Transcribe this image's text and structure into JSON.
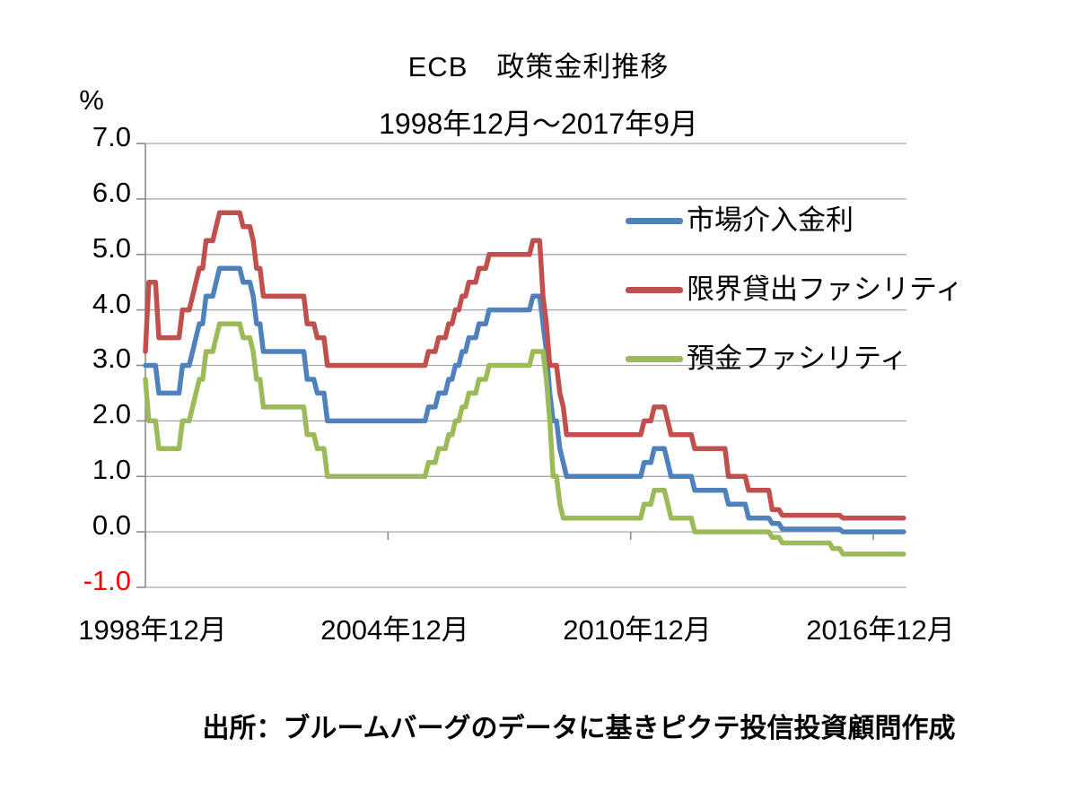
{
  "title": "ECB　政策金利推移",
  "subtitle": "1998年12月～2017年9月",
  "source": "出所：ブルームバーグのデータに基きピクテ投信投資顧問作成",
  "y_axis": {
    "unit": "%",
    "tick_labels": [
      "7.0",
      "6.0",
      "5.0",
      "4.0",
      "3.0",
      "2.0",
      "1.0",
      "0.0",
      "-1.0"
    ],
    "negative_tick_color": "#FF0000"
  },
  "x_axis": {
    "labels": [
      "1998年12月",
      "2004年12月",
      "2010年12月",
      "2016年12月"
    ]
  },
  "legend": [
    {
      "label": "市場介入金利",
      "color": "#4F81BD"
    },
    {
      "label": "限界貸出ファシリティ",
      "color": "#C0504D"
    },
    {
      "label": "預金ファシリティ",
      "color": "#9BBB59"
    }
  ],
  "colors": {
    "gridline": "#A6A6A6",
    "axis": "#8C8C8C"
  },
  "chart_data": {
    "type": "line",
    "title": "ECB　政策金利推移",
    "period_label": "1998年12月～2017年9月",
    "unit": "%",
    "ylim": [
      -1.0,
      7.0
    ],
    "y_gridline_step": 1.0,
    "grid": true,
    "legend_position": "inside-top-right",
    "x_range_months": [
      "1998-12",
      "2017-09"
    ],
    "x_tick_months": [
      "1998-12",
      "2004-12",
      "2010-12",
      "2016-12"
    ],
    "x_tick_labels": [
      "1998年12月",
      "2004年12月",
      "2010年12月",
      "2016年12月"
    ],
    "series": [
      {
        "name": "市場介入金利",
        "color": "#4F81BD",
        "steps_month_value": [
          [
            "1998-12",
            3.0
          ],
          [
            "1999-04",
            2.5
          ],
          [
            "1999-11",
            3.0
          ],
          [
            "2000-02",
            3.25
          ],
          [
            "2000-03",
            3.5
          ],
          [
            "2000-04",
            3.75
          ],
          [
            "2000-06",
            4.25
          ],
          [
            "2000-09",
            4.5
          ],
          [
            "2000-10",
            4.75
          ],
          [
            "2001-05",
            4.5
          ],
          [
            "2001-08",
            4.25
          ],
          [
            "2001-09",
            3.75
          ],
          [
            "2001-11",
            3.25
          ],
          [
            "2002-12",
            2.75
          ],
          [
            "2003-03",
            2.5
          ],
          [
            "2003-06",
            2.0
          ],
          [
            "2005-12",
            2.25
          ],
          [
            "2006-03",
            2.5
          ],
          [
            "2006-06",
            2.75
          ],
          [
            "2006-08",
            3.0
          ],
          [
            "2006-10",
            3.25
          ],
          [
            "2006-12",
            3.5
          ],
          [
            "2007-03",
            3.75
          ],
          [
            "2007-06",
            4.0
          ],
          [
            "2008-07",
            4.25
          ],
          [
            "2008-10",
            3.75
          ],
          [
            "2008-11",
            3.25
          ],
          [
            "2008-12",
            2.5
          ],
          [
            "2009-01",
            2.0
          ],
          [
            "2009-03",
            1.5
          ],
          [
            "2009-04",
            1.25
          ],
          [
            "2009-05",
            1.0
          ],
          [
            "2011-04",
            1.25
          ],
          [
            "2011-07",
            1.5
          ],
          [
            "2011-11",
            1.25
          ],
          [
            "2011-12",
            1.0
          ],
          [
            "2012-07",
            0.75
          ],
          [
            "2013-05",
            0.5
          ],
          [
            "2013-11",
            0.25
          ],
          [
            "2014-06",
            0.15
          ],
          [
            "2014-09",
            0.05
          ],
          [
            "2016-03",
            0.0
          ]
        ]
      },
      {
        "name": "限界貸出ファシリティ",
        "color": "#C0504D",
        "steps_month_value": [
          [
            "1998-12",
            3.25
          ],
          [
            "1999-01",
            4.5
          ],
          [
            "1999-04",
            3.5
          ],
          [
            "1999-11",
            4.0
          ],
          [
            "2000-02",
            4.25
          ],
          [
            "2000-03",
            4.5
          ],
          [
            "2000-04",
            4.75
          ],
          [
            "2000-06",
            5.25
          ],
          [
            "2000-09",
            5.5
          ],
          [
            "2000-10",
            5.75
          ],
          [
            "2001-05",
            5.5
          ],
          [
            "2001-08",
            5.25
          ],
          [
            "2001-09",
            4.75
          ],
          [
            "2001-11",
            4.25
          ],
          [
            "2002-12",
            3.75
          ],
          [
            "2003-03",
            3.5
          ],
          [
            "2003-06",
            3.0
          ],
          [
            "2005-12",
            3.25
          ],
          [
            "2006-03",
            3.5
          ],
          [
            "2006-06",
            3.75
          ],
          [
            "2006-08",
            4.0
          ],
          [
            "2006-10",
            4.25
          ],
          [
            "2006-12",
            4.5
          ],
          [
            "2007-03",
            4.75
          ],
          [
            "2007-06",
            5.0
          ],
          [
            "2008-07",
            5.25
          ],
          [
            "2008-10",
            4.25
          ],
          [
            "2008-11",
            3.75
          ],
          [
            "2008-12",
            3.0
          ],
          [
            "2009-03",
            2.5
          ],
          [
            "2009-04",
            2.25
          ],
          [
            "2009-05",
            1.75
          ],
          [
            "2011-04",
            2.0
          ],
          [
            "2011-07",
            2.25
          ],
          [
            "2011-11",
            2.0
          ],
          [
            "2011-12",
            1.75
          ],
          [
            "2012-07",
            1.5
          ],
          [
            "2013-05",
            1.0
          ],
          [
            "2013-11",
            0.75
          ],
          [
            "2014-06",
            0.4
          ],
          [
            "2014-09",
            0.3
          ],
          [
            "2016-03",
            0.25
          ]
        ]
      },
      {
        "name": "預金ファシリティ",
        "color": "#9BBB59",
        "steps_month_value": [
          [
            "1998-12",
            2.75
          ],
          [
            "1999-01",
            2.0
          ],
          [
            "1999-04",
            1.5
          ],
          [
            "1999-11",
            2.0
          ],
          [
            "2000-02",
            2.25
          ],
          [
            "2000-03",
            2.5
          ],
          [
            "2000-04",
            2.75
          ],
          [
            "2000-06",
            3.25
          ],
          [
            "2000-09",
            3.5
          ],
          [
            "2000-10",
            3.75
          ],
          [
            "2001-05",
            3.5
          ],
          [
            "2001-08",
            3.25
          ],
          [
            "2001-09",
            2.75
          ],
          [
            "2001-11",
            2.25
          ],
          [
            "2002-12",
            1.75
          ],
          [
            "2003-03",
            1.5
          ],
          [
            "2003-06",
            1.0
          ],
          [
            "2005-12",
            1.25
          ],
          [
            "2006-03",
            1.5
          ],
          [
            "2006-06",
            1.75
          ],
          [
            "2006-08",
            2.0
          ],
          [
            "2006-10",
            2.25
          ],
          [
            "2006-12",
            2.5
          ],
          [
            "2007-03",
            2.75
          ],
          [
            "2007-06",
            3.0
          ],
          [
            "2008-07",
            3.25
          ],
          [
            "2008-11",
            2.75
          ],
          [
            "2008-12",
            2.0
          ],
          [
            "2009-01",
            1.0
          ],
          [
            "2009-03",
            0.5
          ],
          [
            "2009-04",
            0.25
          ],
          [
            "2011-04",
            0.5
          ],
          [
            "2011-07",
            0.75
          ],
          [
            "2011-11",
            0.5
          ],
          [
            "2011-12",
            0.25
          ],
          [
            "2012-07",
            0.0
          ],
          [
            "2014-06",
            -0.1
          ],
          [
            "2014-09",
            -0.2
          ],
          [
            "2015-12",
            -0.3
          ],
          [
            "2016-03",
            -0.4
          ]
        ]
      }
    ]
  }
}
